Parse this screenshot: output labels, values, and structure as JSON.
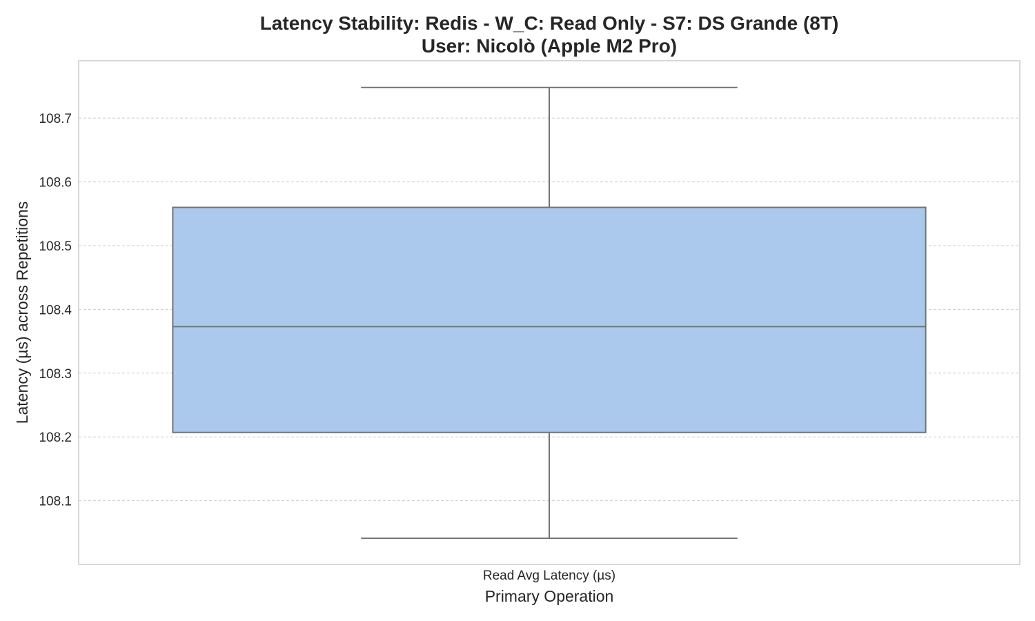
{
  "chart_data": {
    "type": "box",
    "title_line1": "Latency Stability: Redis - W_C: Read Only - S7: DS Grande (8T)",
    "title_line2": "User: Nicolò (Apple M2 Pro)",
    "xlabel": "Primary Operation",
    "ylabel": "Latency (µs) across Repetitions",
    "categories": [
      "Read Avg Latency (µs)"
    ],
    "boxes": [
      {
        "category": "Read Avg Latency (µs)",
        "whisker_low": 108.041,
        "q1": 108.207,
        "median": 108.373,
        "q3": 108.56,
        "whisker_high": 108.748
      }
    ],
    "ylim": [
      108.0,
      108.79
    ],
    "yticks": [
      108.1,
      108.2,
      108.3,
      108.4,
      108.5,
      108.6,
      108.7
    ],
    "ytick_labels": [
      "108.1",
      "108.2",
      "108.3",
      "108.4",
      "108.5",
      "108.6",
      "108.7"
    ],
    "grid": true,
    "box_color": "#abc9ed",
    "line_color": "#737373",
    "grid_color": "#cccccc"
  }
}
